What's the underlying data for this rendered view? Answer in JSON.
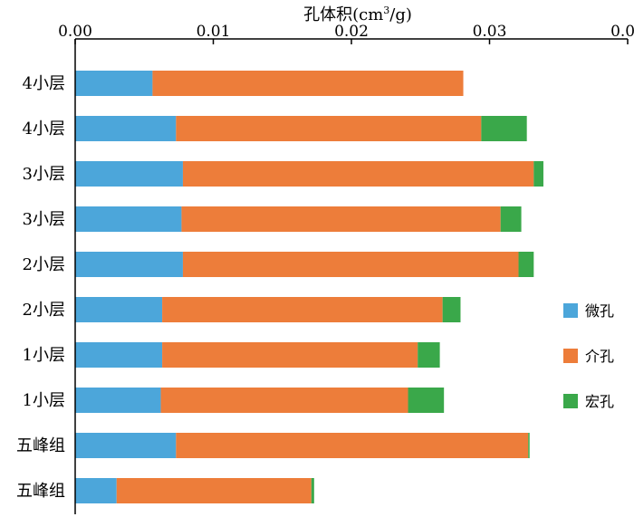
{
  "chart_data": {
    "type": "bar",
    "orientation": "horizontal",
    "stacked": true,
    "title": "",
    "xlabel_main": "孔体积(cm",
    "xlabel_sup": "3",
    "xlabel_tail": "/g)",
    "xlabel": "孔体积(cm3/g)",
    "xlim": [
      0,
      0.04
    ],
    "x_ticks": [
      "0.00",
      "0.01",
      "0.02",
      "0.03",
      "0.04"
    ],
    "x_tick_values": [
      0,
      0.01,
      0.02,
      0.03,
      0.04
    ],
    "x_axis_position": "top",
    "legend_position": "right",
    "categories": [
      "4小层",
      "4小层",
      "3小层",
      "3小层",
      "2小层",
      "2小层",
      "1小层",
      "1小层",
      "五峰组",
      "五峰组"
    ],
    "series": [
      {
        "name": "微孔",
        "color": "#4CA6DA",
        "values": [
          0.0056,
          0.0073,
          0.0078,
          0.0077,
          0.0078,
          0.0063,
          0.0063,
          0.0062,
          0.0073,
          0.003
        ]
      },
      {
        "name": "介孔",
        "color": "#ED7D3A",
        "values": [
          0.0225,
          0.0221,
          0.0254,
          0.0231,
          0.0243,
          0.0203,
          0.0185,
          0.0179,
          0.0255,
          0.0141
        ]
      },
      {
        "name": "宏孔",
        "color": "#3AA84A",
        "values": [
          0.0,
          0.0033,
          0.0007,
          0.0015,
          0.0011,
          0.0013,
          0.0016,
          0.0026,
          0.0001,
          0.0002
        ]
      }
    ]
  }
}
